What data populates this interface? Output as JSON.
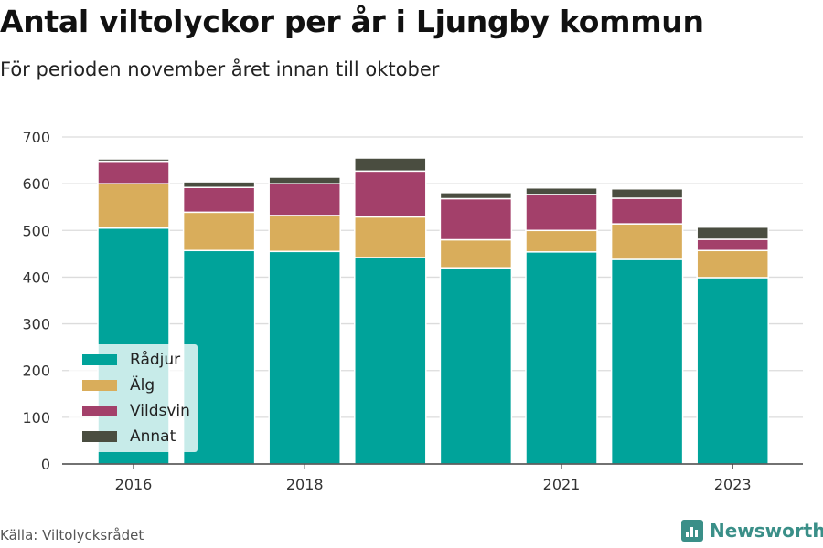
{
  "header": {
    "title": "Antal viltolyckor per år i Ljungby kommun",
    "subtitle": "För perioden november året innan till oktober"
  },
  "footer": {
    "source": "Källa: Viltolycksrådet",
    "brand": "Newsworthy"
  },
  "colors": {
    "Rådjur": "#00a39a",
    "Älg": "#d9ad5b",
    "Vildsvin": "#a3406a",
    "Annat": "#4a4d40",
    "brand": "#3a8f88"
  },
  "chart_data": {
    "type": "bar",
    "stacked": true,
    "title": "Antal viltolyckor per år i Ljungby kommun",
    "subtitle": "För perioden november året innan till oktober",
    "x": [
      2016,
      2017,
      2018,
      2019,
      2020,
      2021,
      2022,
      2023
    ],
    "x_tick_labels": [
      "2016",
      "",
      "2018",
      "",
      "",
      "2021",
      "",
      "2023"
    ],
    "ylim": [
      0,
      700
    ],
    "yticks": [
      0,
      100,
      200,
      300,
      400,
      500,
      600,
      700
    ],
    "grid": true,
    "legend_position": "bottom-left",
    "series": [
      {
        "name": "Rådjur",
        "values": [
          505,
          457,
          455,
          442,
          420,
          454,
          438,
          399
        ]
      },
      {
        "name": "Älg",
        "values": [
          95,
          82,
          77,
          87,
          60,
          46,
          76,
          58
        ]
      },
      {
        "name": "Vildsvin",
        "values": [
          48,
          53,
          68,
          98,
          88,
          77,
          55,
          24
        ]
      },
      {
        "name": "Annat",
        "values": [
          5,
          12,
          14,
          28,
          13,
          14,
          20,
          26
        ]
      }
    ]
  }
}
